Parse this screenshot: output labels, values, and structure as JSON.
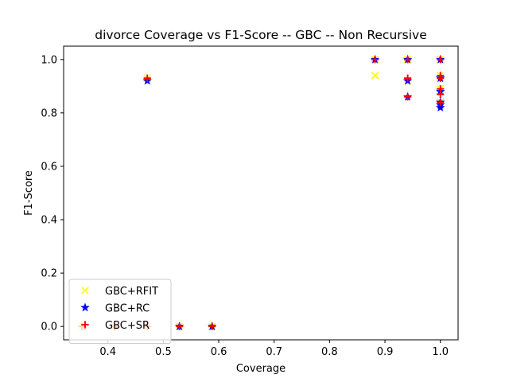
{
  "chart_data": {
    "type": "scatter",
    "title": "divorce Coverage vs F1-Score -- GBC -- Non Recursive",
    "xlabel": "Coverage",
    "ylabel": "F1-Score",
    "xlim": [
      0.32,
      1.032
    ],
    "ylim": [
      -0.05,
      1.05
    ],
    "xticks": [
      0.4,
      0.5,
      0.6,
      0.7,
      0.8,
      0.9,
      1.0
    ],
    "xtick_labels": [
      "0.4",
      "0.5",
      "0.6",
      "0.7",
      "0.8",
      "0.9",
      "1.0"
    ],
    "yticks": [
      0.0,
      0.2,
      0.4,
      0.6,
      0.8,
      1.0
    ],
    "ytick_labels": [
      "0.0",
      "0.2",
      "0.4",
      "0.6",
      "0.8",
      "1.0"
    ],
    "grid": false,
    "legend": "lower-left",
    "series": [
      {
        "name": "GBC+RFIT",
        "marker": "x",
        "color": "#ffff00",
        "x": [
          0.353,
          0.412,
          0.471,
          0.471,
          0.529,
          0.588,
          0.882,
          0.882,
          0.941,
          0.941,
          1.0,
          1.0,
          1.0,
          1.0,
          1.0,
          1.0
        ],
        "y": [
          0.0,
          0.0,
          0.0,
          0.93,
          0.0,
          0.0,
          1.0,
          0.94,
          1.0,
          0.92,
          1.0,
          0.94,
          0.93,
          0.89,
          0.84,
          0.83
        ]
      },
      {
        "name": "GBC+RC",
        "marker": "star",
        "color": "#0000ff",
        "x": [
          0.471,
          0.529,
          0.588,
          0.882,
          0.941,
          0.941,
          0.941,
          1.0,
          1.0,
          1.0,
          1.0,
          1.0,
          1.0
        ],
        "y": [
          0.92,
          0.0,
          0.0,
          1.0,
          1.0,
          0.92,
          0.86,
          1.0,
          0.93,
          0.88,
          0.84,
          0.83,
          0.82
        ]
      },
      {
        "name": "GBC+SR",
        "marker": "plus",
        "color": "#ff0000",
        "x": [
          0.353,
          0.412,
          0.471,
          0.471,
          0.529,
          0.588,
          0.882,
          0.941,
          0.941,
          0.941,
          1.0,
          1.0,
          1.0,
          1.0,
          1.0,
          1.0
        ],
        "y": [
          0.0,
          0.0,
          0.0,
          0.93,
          0.0,
          0.0,
          1.0,
          1.0,
          0.93,
          0.86,
          1.0,
          0.94,
          0.93,
          0.89,
          0.87,
          0.84
        ]
      }
    ]
  }
}
